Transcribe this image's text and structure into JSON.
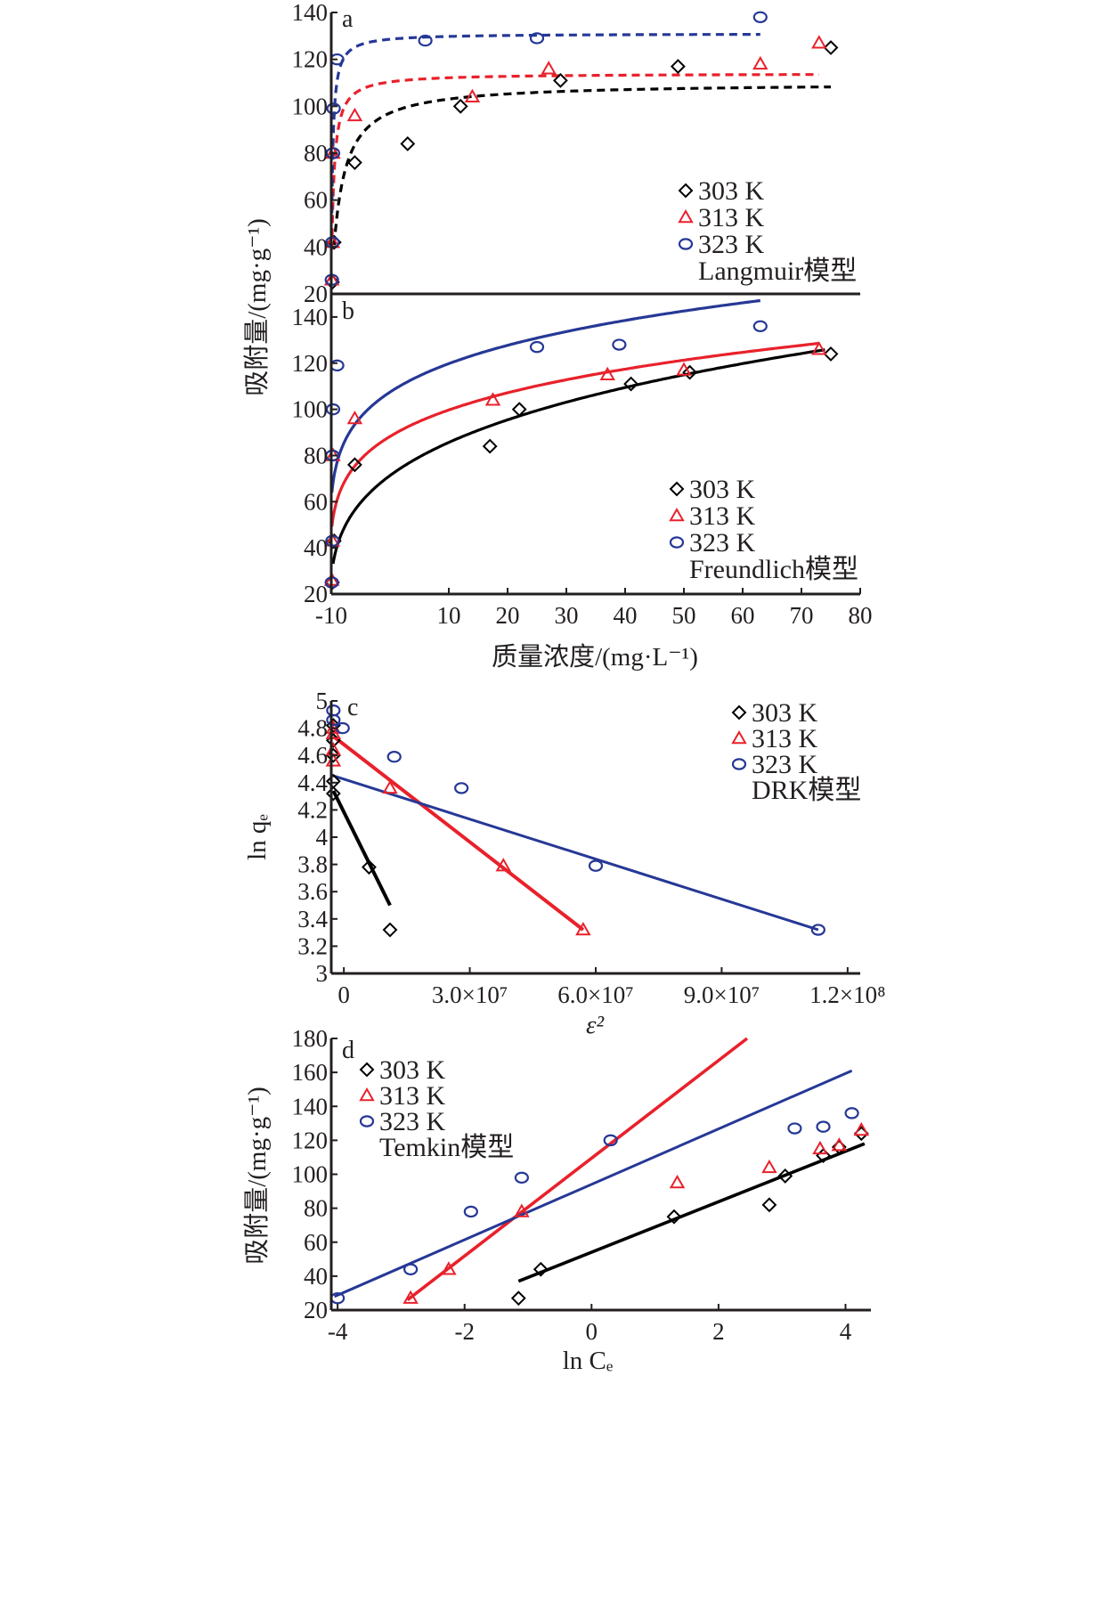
{
  "colors": {
    "303 K": "#000000",
    "313 K": "#e8212b",
    "323 K": "#263896",
    "axis": "#231f20"
  },
  "chart_data": [
    {
      "panel": "a",
      "type": "scatter",
      "title": "",
      "model_label": "Langmuir模型",
      "xlabel": "质量浓度/(mg·L⁻¹)",
      "ylabel": "吸附量/(mg·g⁻¹)",
      "xlim": [
        -10,
        80
      ],
      "ylim": [
        20,
        140
      ],
      "xticks": [],
      "yticks": [
        20,
        40,
        60,
        80,
        100,
        120,
        140
      ],
      "legend": [
        "303 K",
        "313 K",
        "323 K"
      ],
      "legend_position": "right",
      "fit_style": "dashed",
      "series": [
        {
          "name": "303 K",
          "marker": "diamond",
          "x": [
            -9.8,
            -9.5,
            -6,
            3,
            12,
            29,
            49,
            75
          ],
          "y": [
            25,
            42,
            76,
            84,
            100,
            111,
            117,
            125
          ]
        },
        {
          "name": "313 K",
          "marker": "triangle",
          "x": [
            -9.9,
            -9.8,
            -9.7,
            -6,
            14,
            27,
            63,
            73
          ],
          "y": [
            26,
            42,
            80,
            96,
            104,
            116,
            118,
            127
          ]
        },
        {
          "name": "323 K",
          "marker": "circle",
          "x": [
            -9.9,
            -9.8,
            -9.7,
            -9.6,
            -9,
            6,
            25,
            63
          ],
          "y": [
            26,
            42,
            80,
            99,
            120,
            128,
            129,
            138
          ]
        }
      ],
      "fits": [
        {
          "name": "303 K",
          "model": "langmuir",
          "qm": 110,
          "K": 0.6,
          "x_range": [
            -9.5,
            75
          ]
        },
        {
          "name": "313 K",
          "model": "langmuir",
          "qm": 114,
          "K": 2.5,
          "x_range": [
            -9.9,
            73
          ]
        },
        {
          "name": "323 K",
          "model": "langmuir",
          "qm": 131,
          "K": 4.5,
          "x_range": [
            -9.9,
            63
          ]
        }
      ]
    },
    {
      "panel": "b",
      "type": "scatter",
      "title": "",
      "model_label": "Freundlich模型",
      "xlabel": "质量浓度/(mg·L⁻¹)",
      "ylabel": "吸附量/(mg·g⁻¹)",
      "xlim": [
        -10,
        80
      ],
      "ylim": [
        20,
        150
      ],
      "xticks": [
        -10,
        10,
        20,
        30,
        40,
        50,
        60,
        70,
        80
      ],
      "yticks": [
        20,
        40,
        60,
        80,
        100,
        120,
        140
      ],
      "legend": [
        "303 K",
        "313 K",
        "323 K"
      ],
      "legend_position": "bottom-right",
      "fit_style": "solid",
      "series": [
        {
          "name": "303 K",
          "marker": "diamond",
          "x": [
            -9.8,
            -9.5,
            -6,
            17,
            22,
            41,
            51,
            75
          ],
          "y": [
            25,
            43,
            76,
            84,
            100,
            111,
            116,
            124
          ]
        },
        {
          "name": "313 K",
          "marker": "triangle",
          "x": [
            -9.9,
            -9.8,
            -9.7,
            -6,
            17.5,
            37,
            50,
            73
          ],
          "y": [
            26,
            43,
            80,
            96,
            104,
            115,
            117,
            126
          ]
        },
        {
          "name": "323 K",
          "marker": "circle",
          "x": [
            -9.9,
            -9.8,
            -9.8,
            -9.7,
            -9,
            25,
            39,
            63
          ],
          "y": [
            25,
            43,
            80,
            100,
            119,
            127,
            128,
            136
          ]
        }
      ],
      "fits": [
        {
          "name": "303 K",
          "model": "freundlich",
          "x_range": [
            -9.7,
            74
          ]
        },
        {
          "name": "313 K",
          "model": "freundlich",
          "x_range": [
            -9.9,
            73
          ]
        },
        {
          "name": "323 K",
          "model": "freundlich",
          "x_range": [
            -9.9,
            63
          ]
        }
      ]
    },
    {
      "panel": "c",
      "type": "scatter",
      "title": "",
      "model_label": "DRK模型",
      "xlabel": "ε²",
      "ylabel": "ln qₑ",
      "xlim": [
        -3000000,
        123000000
      ],
      "ylim": [
        3.0,
        5.0
      ],
      "xticks": [
        0,
        30000000,
        60000000,
        90000000,
        120000000
      ],
      "xtick_labels": [
        "0",
        "3.0×10⁷",
        "6.0×10⁷",
        "9.0×10⁷",
        "1.2×10⁸"
      ],
      "yticks": [
        3.0,
        3.2,
        3.4,
        3.6,
        3.8,
        4.0,
        4.2,
        4.4,
        4.6,
        4.8,
        5.0
      ],
      "legend": [
        "303 K",
        "313 K",
        "323 K"
      ],
      "legend_position": "top-right",
      "fit_style": "solid",
      "series": [
        {
          "name": "303 K",
          "marker": "diamond",
          "x": [
            -2500000,
            -2500000,
            -2500000,
            -2500000,
            -2500000,
            6000000,
            11000000
          ],
          "y": [
            4.82,
            4.71,
            4.6,
            4.41,
            4.32,
            3.78,
            3.32
          ]
        },
        {
          "name": "313 K",
          "marker": "triangle",
          "x": [
            -2500000,
            -2500000,
            -2500000,
            -2500000,
            11000000,
            38000000,
            57000000
          ],
          "y": [
            4.8,
            4.76,
            4.64,
            4.56,
            4.36,
            3.79,
            3.32
          ]
        },
        {
          "name": "323 K",
          "marker": "circle",
          "x": [
            -2500000,
            -2500000,
            -300000,
            12000000,
            28000000,
            60000000,
            113000000
          ],
          "y": [
            4.93,
            4.86,
            4.8,
            4.59,
            4.36,
            3.79,
            3.32
          ]
        }
      ],
      "fits": [
        {
          "name": "303 K",
          "model": "linear",
          "x": [
            -2500000,
            11000000
          ],
          "y": [
            4.34,
            3.5
          ]
        },
        {
          "name": "313 K",
          "model": "linear",
          "x": [
            -2500000,
            57000000
          ],
          "y": [
            4.74,
            3.32
          ]
        },
        {
          "name": "323 K",
          "model": "linear",
          "x": [
            -2500000,
            113000000
          ],
          "y": [
            4.45,
            3.32
          ]
        }
      ]
    },
    {
      "panel": "d",
      "type": "scatter",
      "title": "",
      "model_label": "Temkin模型",
      "xlabel": "ln Cₑ",
      "ylabel": "吸附量/(mg·g⁻¹)",
      "xlim": [
        -4.1,
        4.4
      ],
      "ylim": [
        20,
        180
      ],
      "xticks": [
        -4,
        -2,
        0,
        2,
        4
      ],
      "yticks": [
        20,
        40,
        60,
        80,
        100,
        120,
        140,
        160,
        180
      ],
      "legend": [
        "303 K",
        "313 K",
        "323 K"
      ],
      "legend_position": "top-left",
      "fit_style": "solid",
      "series": [
        {
          "name": "303 K",
          "marker": "diamond",
          "x": [
            -1.15,
            -0.8,
            1.3,
            2.8,
            3.05,
            3.65,
            3.9,
            4.25
          ],
          "y": [
            27,
            44,
            75,
            82,
            99,
            111,
            116,
            124
          ]
        },
        {
          "name": "313 K",
          "marker": "triangle",
          "x": [
            -2.85,
            -2.25,
            -1.1,
            1.35,
            2.8,
            3.6,
            3.9,
            4.25
          ],
          "y": [
            27,
            44,
            78,
            95,
            104,
            115,
            117,
            126
          ]
        },
        {
          "name": "323 K",
          "marker": "circle",
          "x": [
            -4.0,
            -2.85,
            -1.9,
            -1.1,
            0.3,
            3.2,
            3.65,
            4.1
          ],
          "y": [
            27,
            44,
            78,
            98,
            120,
            127,
            128,
            136
          ]
        }
      ],
      "fits": [
        {
          "name": "303 K",
          "model": "linear",
          "x": [
            -1.15,
            4.3
          ],
          "y": [
            37,
            118
          ]
        },
        {
          "name": "313 K",
          "model": "linear",
          "x": [
            -2.9,
            2.45
          ],
          "y": [
            26,
            180
          ]
        },
        {
          "name": "323 K",
          "model": "linear",
          "x": [
            -4.05,
            4.1
          ],
          "y": [
            28,
            161
          ]
        }
      ]
    }
  ]
}
